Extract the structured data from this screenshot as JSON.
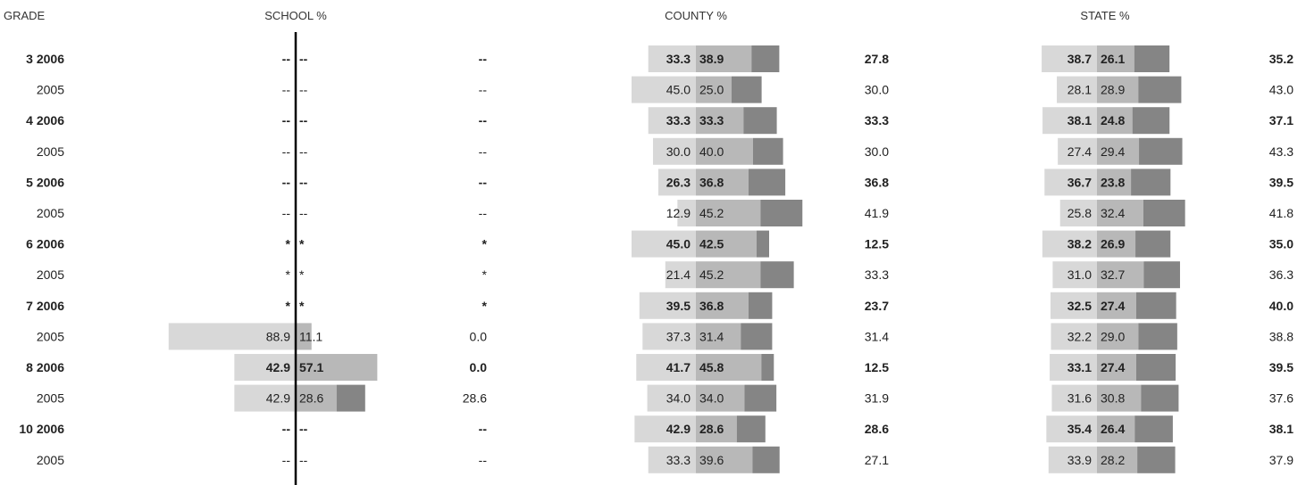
{
  "chart_data": {
    "type": "bar",
    "headers": {
      "grade": "GRADE",
      "school": "SCHOOL %",
      "county": "COUNTY %",
      "state": "STATE %"
    },
    "colors": {
      "bar_light": "#d8d8d8",
      "bar_mid": "#b8b8b8",
      "bar_dark": "#858585",
      "axis": "#000000"
    },
    "rows": [
      {
        "label": "3 2006",
        "bold": true,
        "school": [
          "--",
          "--",
          "--"
        ],
        "county": [
          "33.3",
          "38.9",
          "27.8"
        ],
        "state": [
          "38.7",
          "26.1",
          "35.2"
        ]
      },
      {
        "label": "2005",
        "bold": false,
        "school": [
          "--",
          "--",
          "--"
        ],
        "county": [
          "45.0",
          "25.0",
          "30.0"
        ],
        "state": [
          "28.1",
          "28.9",
          "43.0"
        ]
      },
      {
        "label": "4 2006",
        "bold": true,
        "school": [
          "--",
          "--",
          "--"
        ],
        "county": [
          "33.3",
          "33.3",
          "33.3"
        ],
        "state": [
          "38.1",
          "24.8",
          "37.1"
        ]
      },
      {
        "label": "2005",
        "bold": false,
        "school": [
          "--",
          "--",
          "--"
        ],
        "county": [
          "30.0",
          "40.0",
          "30.0"
        ],
        "state": [
          "27.4",
          "29.4",
          "43.3"
        ]
      },
      {
        "label": "5 2006",
        "bold": true,
        "school": [
          "--",
          "--",
          "--"
        ],
        "county": [
          "26.3",
          "36.8",
          "36.8"
        ],
        "state": [
          "36.7",
          "23.8",
          "39.5"
        ]
      },
      {
        "label": "2005",
        "bold": false,
        "school": [
          "--",
          "--",
          "--"
        ],
        "county": [
          "12.9",
          "45.2",
          "41.9"
        ],
        "state": [
          "25.8",
          "32.4",
          "41.8"
        ]
      },
      {
        "label": "6 2006",
        "bold": true,
        "school": [
          "*",
          "*",
          "*"
        ],
        "county": [
          "45.0",
          "42.5",
          "12.5"
        ],
        "state": [
          "38.2",
          "26.9",
          "35.0"
        ]
      },
      {
        "label": "2005",
        "bold": false,
        "school": [
          "*",
          "*",
          "*"
        ],
        "county": [
          "21.4",
          "45.2",
          "33.3"
        ],
        "state": [
          "31.0",
          "32.7",
          "36.3"
        ]
      },
      {
        "label": "7 2006",
        "bold": true,
        "school": [
          "*",
          "*",
          "*"
        ],
        "county": [
          "39.5",
          "36.8",
          "23.7"
        ],
        "state": [
          "32.5",
          "27.4",
          "40.0"
        ]
      },
      {
        "label": "2005",
        "bold": false,
        "school": [
          "88.9",
          "11.1",
          "0.0"
        ],
        "county": [
          "37.3",
          "31.4",
          "31.4"
        ],
        "state": [
          "32.2",
          "29.0",
          "38.8"
        ]
      },
      {
        "label": "8 2006",
        "bold": true,
        "school": [
          "42.9",
          "57.1",
          "0.0"
        ],
        "county": [
          "41.7",
          "45.8",
          "12.5"
        ],
        "state": [
          "33.1",
          "27.4",
          "39.5"
        ]
      },
      {
        "label": "2005",
        "bold": false,
        "school": [
          "42.9",
          "28.6",
          "28.6"
        ],
        "county": [
          "34.0",
          "34.0",
          "31.9"
        ],
        "state": [
          "31.6",
          "30.8",
          "37.6"
        ]
      },
      {
        "label": "10 2006",
        "bold": true,
        "school": [
          "--",
          "--",
          "--"
        ],
        "county": [
          "42.9",
          "28.6",
          "28.6"
        ],
        "state": [
          "35.4",
          "26.4",
          "38.1"
        ]
      },
      {
        "label": "2005",
        "bold": false,
        "school": [
          "--",
          "--",
          "--"
        ],
        "county": [
          "33.3",
          "39.6",
          "27.1"
        ],
        "state": [
          "33.9",
          "28.2",
          "37.9"
        ]
      }
    ]
  }
}
